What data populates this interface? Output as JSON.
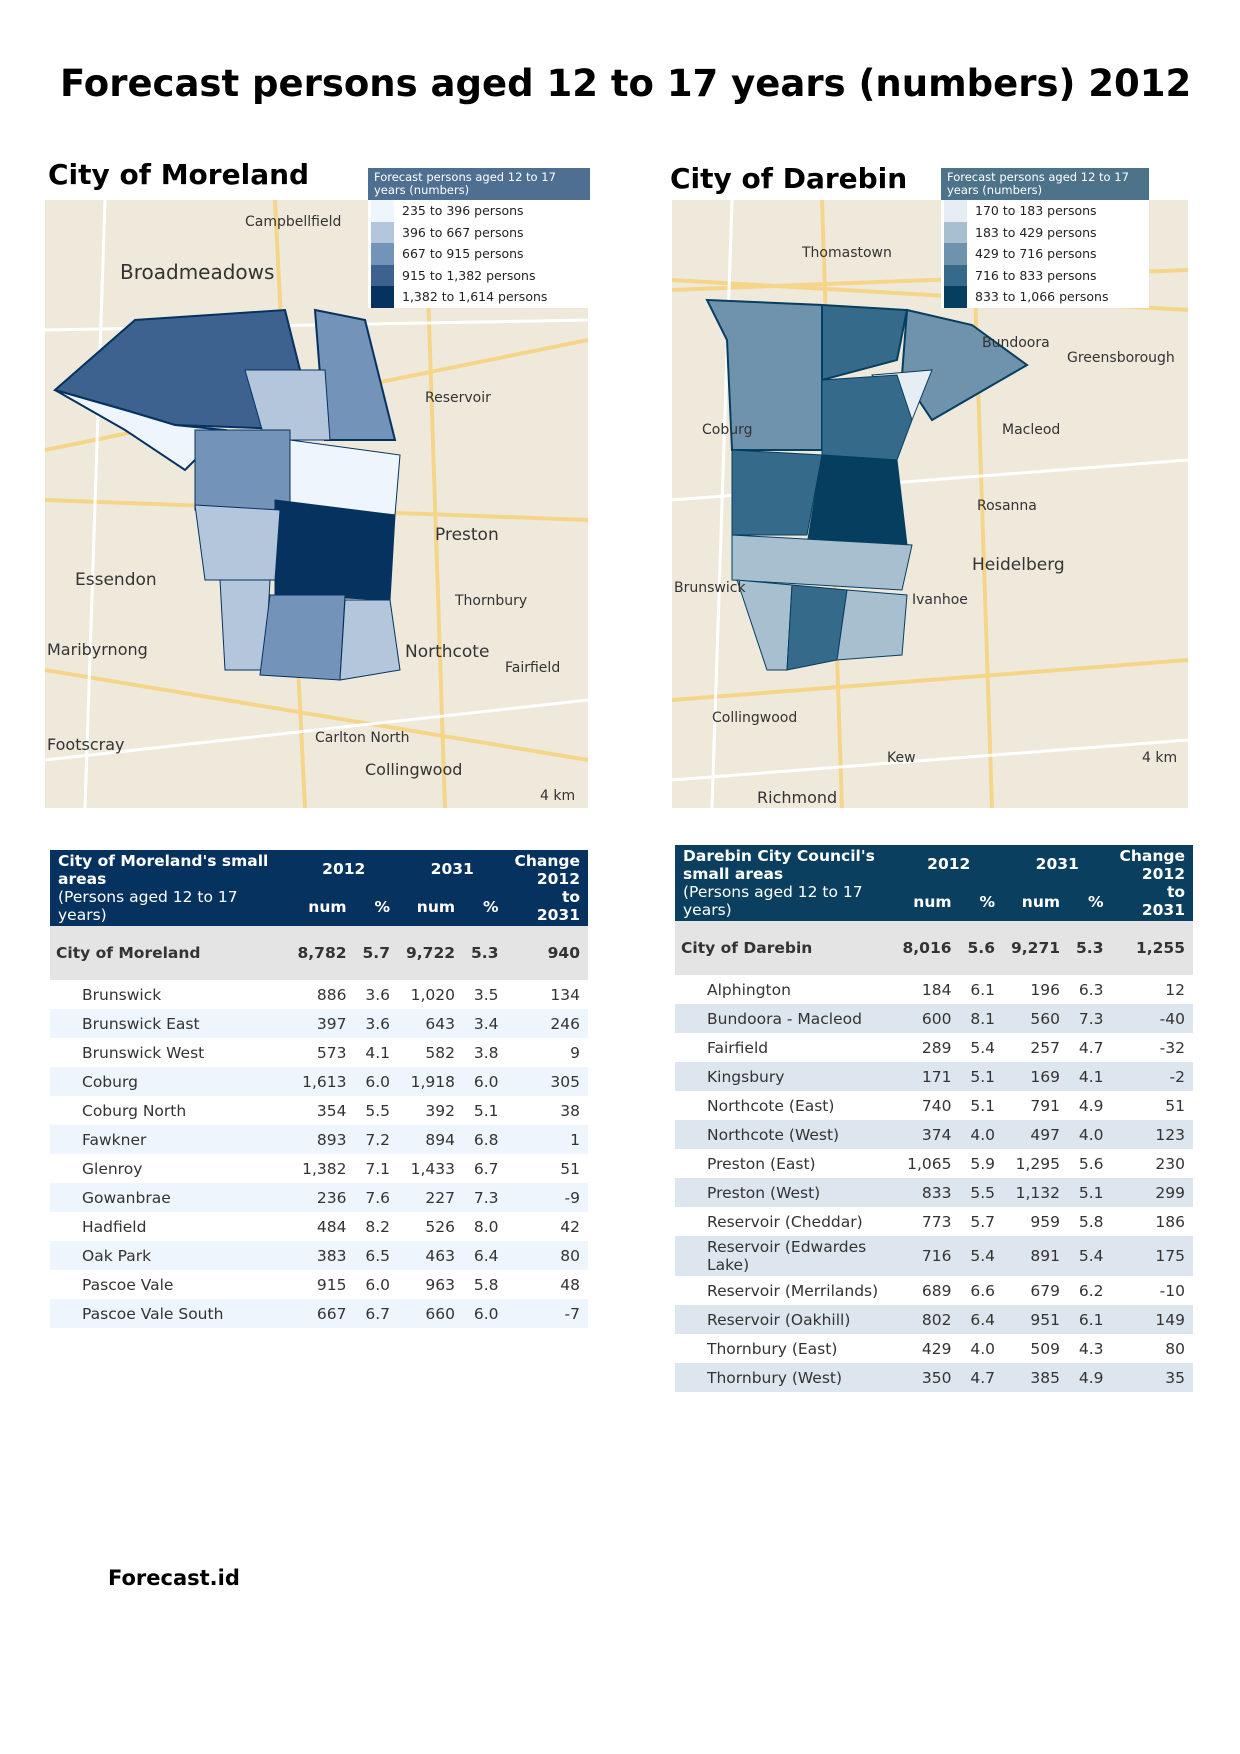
{
  "title": "Forecast persons aged 12 to 17 years (numbers) 2012",
  "footer": "Forecast.id",
  "moreland": {
    "map_title": "City of Moreland",
    "legend": {
      "title": "Forecast persons aged 12 to 17 years (numbers)",
      "items": [
        {
          "label": "235 to 396 persons",
          "color": "#eef5fd"
        },
        {
          "label": "396 to 667 persons",
          "color": "#b3c6dc"
        },
        {
          "label": "667 to 915 persons",
          "color": "#7393b8"
        },
        {
          "label": "915 to 1,382 persons",
          "color": "#3d6290"
        },
        {
          "label": "1,382 to 1,614 persons",
          "color": "#06325f"
        }
      ]
    },
    "labels": [
      "Broadmeadows",
      "Campbellfield",
      "Reservoir",
      "Preston",
      "Essendon",
      "Northcote",
      "Thornbury",
      "Footscray",
      "Carlton North",
      "Collingwood",
      "Fairfield",
      "Maribyrnong",
      "4 km"
    ],
    "table": {
      "header": "City of Moreland's small areas",
      "subheader": "(Persons aged 12 to 17 years)",
      "y1": "2012",
      "y2": "2031",
      "change": "Change 2012 to 2031",
      "num": "num",
      "pct": "%",
      "total": [
        "City of Moreland",
        "8,782",
        "5.7",
        "9,722",
        "5.3",
        "940"
      ],
      "rows": [
        [
          "Brunswick",
          "886",
          "3.6",
          "1,020",
          "3.5",
          "134"
        ],
        [
          "Brunswick East",
          "397",
          "3.6",
          "643",
          "3.4",
          "246"
        ],
        [
          "Brunswick West",
          "573",
          "4.1",
          "582",
          "3.8",
          "9"
        ],
        [
          "Coburg",
          "1,613",
          "6.0",
          "1,918",
          "6.0",
          "305"
        ],
        [
          "Coburg North",
          "354",
          "5.5",
          "392",
          "5.1",
          "38"
        ],
        [
          "Fawkner",
          "893",
          "7.2",
          "894",
          "6.8",
          "1"
        ],
        [
          "Glenroy",
          "1,382",
          "7.1",
          "1,433",
          "6.7",
          "51"
        ],
        [
          "Gowanbrae",
          "236",
          "7.6",
          "227",
          "7.3",
          "-9"
        ],
        [
          "Hadfield",
          "484",
          "8.2",
          "526",
          "8.0",
          "42"
        ],
        [
          "Oak Park",
          "383",
          "6.5",
          "463",
          "6.4",
          "80"
        ],
        [
          "Pascoe Vale",
          "915",
          "6.0",
          "963",
          "5.8",
          "48"
        ],
        [
          "Pascoe Vale South",
          "667",
          "6.7",
          "660",
          "6.0",
          "-7"
        ]
      ]
    }
  },
  "darebin": {
    "map_title": "City of Darebin",
    "legend": {
      "title": "Forecast persons aged 12 to 17 years (numbers)",
      "items": [
        {
          "label": "170 to 183 persons",
          "color": "#e6edf3"
        },
        {
          "label": "183 to 429 persons",
          "color": "#a8bfd0"
        },
        {
          "label": "429 to 716 persons",
          "color": "#6f93ad"
        },
        {
          "label": "716 to 833 persons",
          "color": "#356a8a"
        },
        {
          "label": "833 to 1,066 persons",
          "color": "#053e5f"
        }
      ]
    },
    "labels": [
      "Thomastown",
      "Bundoora",
      "Greensborough",
      "Coburg",
      "Macleod",
      "Rosanna",
      "Heidelberg",
      "Ivanhoe",
      "Collingwood",
      "Kew",
      "Richmond",
      "Brunswick",
      "4 km"
    ],
    "table": {
      "header": "Darebin City Council's small areas",
      "subheader": "(Persons aged 12 to 17 years)",
      "y1": "2012",
      "y2": "2031",
      "change": "Change 2012 to 2031",
      "num": "num",
      "pct": "%",
      "total": [
        "City of Darebin",
        "8,016",
        "5.6",
        "9,271",
        "5.3",
        "1,255"
      ],
      "rows": [
        [
          "Alphington",
          "184",
          "6.1",
          "196",
          "6.3",
          "12"
        ],
        [
          "Bundoora - Macleod",
          "600",
          "8.1",
          "560",
          "7.3",
          "-40"
        ],
        [
          "Fairfield",
          "289",
          "5.4",
          "257",
          "4.7",
          "-32"
        ],
        [
          "Kingsbury",
          "171",
          "5.1",
          "169",
          "4.1",
          "-2"
        ],
        [
          "Northcote (East)",
          "740",
          "5.1",
          "791",
          "4.9",
          "51"
        ],
        [
          "Northcote (West)",
          "374",
          "4.0",
          "497",
          "4.0",
          "123"
        ],
        [
          "Preston (East)",
          "1,065",
          "5.9",
          "1,295",
          "5.6",
          "230"
        ],
        [
          "Preston (West)",
          "833",
          "5.5",
          "1,132",
          "5.1",
          "299"
        ],
        [
          "Reservoir (Cheddar)",
          "773",
          "5.7",
          "959",
          "5.8",
          "186"
        ],
        [
          "Reservoir (Edwardes Lake)",
          "716",
          "5.4",
          "891",
          "5.4",
          "175"
        ],
        [
          "Reservoir (Merrilands)",
          "689",
          "6.6",
          "679",
          "6.2",
          "-10"
        ],
        [
          "Reservoir (Oakhill)",
          "802",
          "6.4",
          "951",
          "6.1",
          "149"
        ],
        [
          "Thornbury (East)",
          "429",
          "4.0",
          "509",
          "4.3",
          "80"
        ],
        [
          "Thornbury (West)",
          "350",
          "4.7",
          "385",
          "4.9",
          "35"
        ]
      ]
    }
  }
}
